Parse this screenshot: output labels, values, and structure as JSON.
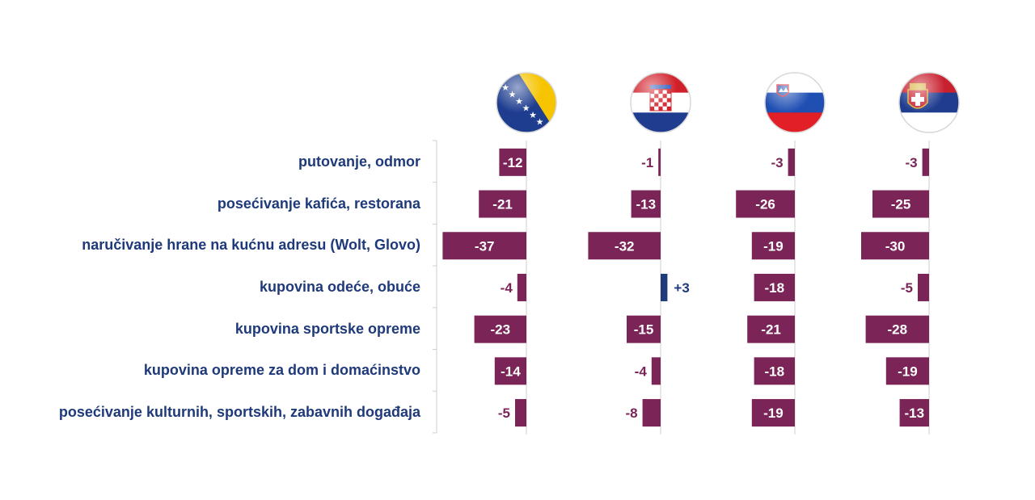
{
  "chart_data": {
    "type": "bar",
    "categories": [
      "putovanje, odmor",
      "posećivanje kafića, restorana",
      "naručivanje hrane na kućnu adresu (Wolt, Glovo)",
      "kupovina odeće, obuće",
      "kupovina sportske opreme",
      "kupovina opreme za dom i domaćinstvo",
      "posećivanje kulturnih, sportskih, zabavnih događaja"
    ],
    "series": [
      {
        "flag": "bosnia-herzegovina",
        "values": [
          -12,
          -21,
          -37,
          -4,
          -23,
          -14,
          -5
        ],
        "labels": [
          "-12",
          "-21",
          "-37",
          "-4",
          "-23",
          "-14",
          "-5"
        ]
      },
      {
        "flag": "croatia",
        "values": [
          -1,
          -13,
          -32,
          3,
          -15,
          -4,
          -8
        ],
        "labels": [
          "-1",
          "-13",
          "-32",
          "+3",
          "-15",
          "-4",
          "-8"
        ]
      },
      {
        "flag": "slovenia",
        "values": [
          -3,
          -26,
          -19,
          -18,
          -21,
          -18,
          -19
        ],
        "labels": [
          "-3",
          "-26",
          "-19",
          "-18",
          "-21",
          "-18",
          "-19"
        ]
      },
      {
        "flag": "serbia",
        "values": [
          -3,
          -25,
          -30,
          -5,
          -28,
          -19,
          -13
        ],
        "labels": [
          "-3",
          "-25",
          "-30",
          "-5",
          "-28",
          "-19",
          "-13"
        ]
      }
    ],
    "colors": {
      "negative": "#7b2457",
      "positive": "#1f3a7a",
      "label_outside": "#7b2457",
      "label_inside": "#ffffff"
    }
  }
}
